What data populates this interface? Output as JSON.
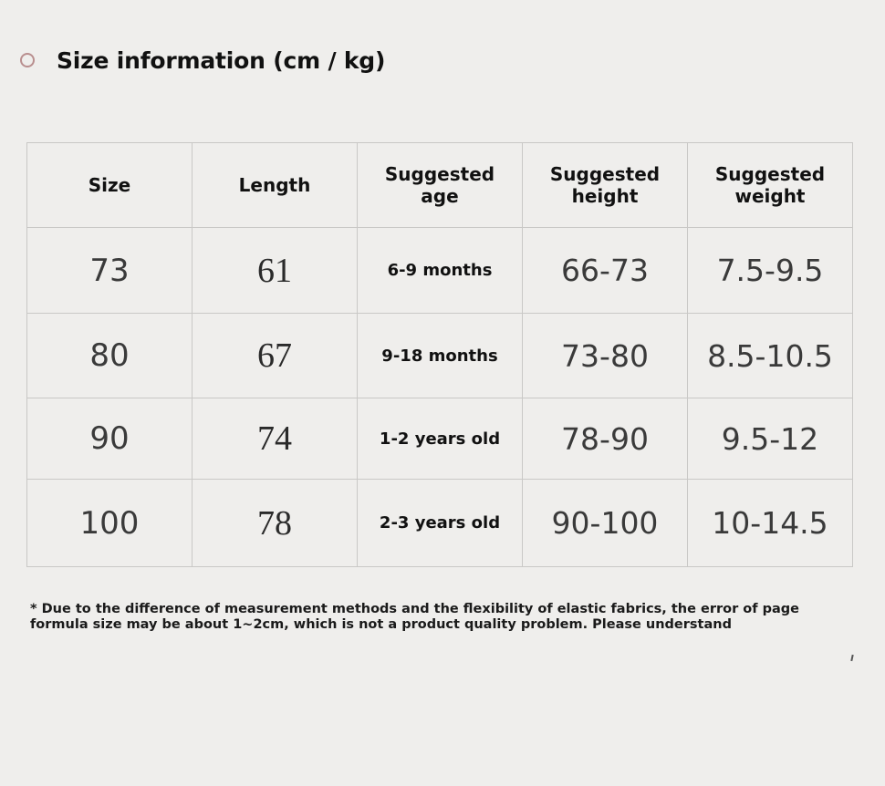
{
  "heading": {
    "title": "Size information (cm / kg)",
    "icon": "ring-icon"
  },
  "table": {
    "headers": {
      "size": "Size",
      "length": "Length",
      "age": "Suggested age",
      "height": "Suggested height",
      "weight": "Suggested weight"
    },
    "rows": [
      {
        "size": "73",
        "length": "61",
        "age": "6-9 months",
        "height": "66-73",
        "weight": "7.5-9.5"
      },
      {
        "size": "80",
        "length": "67",
        "age": "9-18 months",
        "height": "73-80",
        "weight": "8.5-10.5"
      },
      {
        "size": "90",
        "length": "74",
        "age": "1-2 years old",
        "height": "78-90",
        "weight": "9.5-12"
      },
      {
        "size": "100",
        "length": "78",
        "age": "2-3 years old",
        "height": "90-100",
        "weight": "10-14.5"
      }
    ]
  },
  "note": "* Due to the difference of measurement methods and the flexibility of elastic fabrics, the error of page formula size may be about 1~2cm, which is not a product quality problem. Please understand",
  "colors": {
    "background": "#efeeec",
    "border": "#c9c8c6",
    "ring": "#b98f8f"
  }
}
